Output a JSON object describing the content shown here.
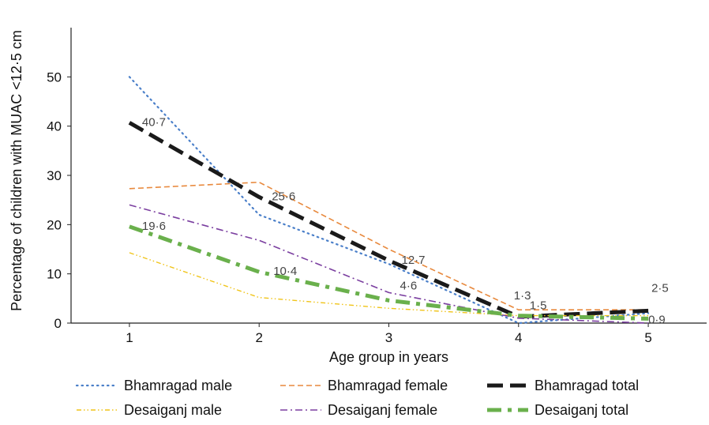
{
  "chart_data": {
    "type": "line",
    "title": "",
    "xlabel": "Age group in years",
    "ylabel": "Percentage of children with MUAC <12·5 cm",
    "x": [
      1,
      2,
      3,
      4,
      5
    ],
    "xlim": [
      0.55,
      5.45
    ],
    "ylim": [
      0,
      60
    ],
    "yticks": [
      0,
      10,
      20,
      30,
      40,
      50
    ],
    "xticks": [
      1,
      2,
      3,
      4,
      5
    ],
    "grid": false,
    "legend_position": "bottom",
    "series": [
      {
        "name": "Bhamragad male",
        "values": [
          50,
          22,
          12,
          0,
          2
        ],
        "color": "#4a7fc9",
        "style": "dotted"
      },
      {
        "name": "Bhamragad female",
        "values": [
          27.3,
          28.6,
          15,
          2.7,
          2.7
        ],
        "color": "#e8893d",
        "style": "dashed"
      },
      {
        "name": "Bhamragad total",
        "values": [
          40.7,
          25.6,
          12.7,
          1.3,
          2.5
        ],
        "color": "#1a1a1a",
        "style": "longdash"
      },
      {
        "name": "Desaiganj male",
        "values": [
          14.3,
          5.2,
          3.0,
          1.5,
          1.5
        ],
        "color": "#f0c419",
        "style": "dashdotdot"
      },
      {
        "name": "Desaiganj female",
        "values": [
          24,
          16.8,
          6.2,
          1.0,
          0
        ],
        "color": "#7b3fa0",
        "style": "dashdot"
      },
      {
        "name": "Desaiganj total",
        "values": [
          19.6,
          10.4,
          4.6,
          1.5,
          0.9
        ],
        "color": "#6ab04c",
        "style": "thickdashdot"
      }
    ],
    "annotations": [
      {
        "series": "Bhamragad total",
        "x": 1,
        "y": 40.7,
        "text": "40·7"
      },
      {
        "series": "Bhamragad total",
        "x": 2,
        "y": 25.6,
        "text": "25·6"
      },
      {
        "series": "Bhamragad total",
        "x": 3,
        "y": 12.7,
        "text": "12·7"
      },
      {
        "series": "Bhamragad total",
        "x": 4,
        "y": 1.3,
        "text": "1·3"
      },
      {
        "series": "Bhamragad total",
        "x": 5,
        "y": 2.5,
        "text": "2·5"
      },
      {
        "series": "Desaiganj total",
        "x": 1,
        "y": 19.6,
        "text": "19·6"
      },
      {
        "series": "Desaiganj total",
        "x": 2,
        "y": 10.4,
        "text": "10·4"
      },
      {
        "series": "Desaiganj total",
        "x": 3,
        "y": 4.6,
        "text": "4·6"
      },
      {
        "series": "Desaiganj total",
        "x": 4,
        "y": 1.5,
        "text": "1·5"
      },
      {
        "series": "Desaiganj total",
        "x": 5,
        "y": 0.9,
        "text": "0·9"
      }
    ]
  }
}
